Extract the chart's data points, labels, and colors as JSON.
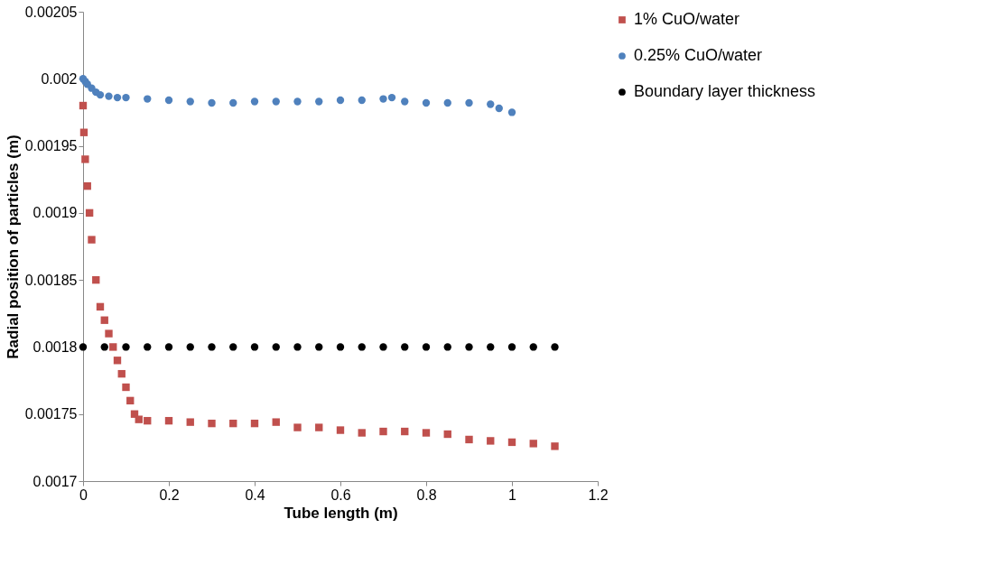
{
  "chart_data": {
    "type": "scatter",
    "xlabel": "Tube length (m)",
    "ylabel": "Radial position of particles (m)",
    "xlim": [
      0,
      1.2
    ],
    "xticks": [
      0,
      0.2,
      0.4,
      0.6,
      0.8,
      1,
      1.2
    ],
    "ylim": [
      0.0017,
      0.00205
    ],
    "yticks": [
      0.0017,
      0.00175,
      0.0018,
      0.00185,
      0.0019,
      0.00195,
      0.002,
      0.00205
    ],
    "grid": false,
    "legend": "right",
    "series": [
      {
        "name": "1% CuO/water",
        "color": "#c0504d",
        "marker": "square",
        "x": [
          0,
          0.002,
          0.005,
          0.01,
          0.015,
          0.02,
          0.03,
          0.04,
          0.05,
          0.06,
          0.07,
          0.08,
          0.09,
          0.1,
          0.11,
          0.12,
          0.13,
          0.15,
          0.2,
          0.25,
          0.3,
          0.35,
          0.4,
          0.45,
          0.5,
          0.55,
          0.6,
          0.65,
          0.7,
          0.75,
          0.8,
          0.85,
          0.9,
          0.95,
          1.0,
          1.05,
          1.1
        ],
        "values": [
          0.00198,
          0.00196,
          0.00194,
          0.00192,
          0.0019,
          0.00188,
          0.00185,
          0.00183,
          0.00182,
          0.00181,
          0.0018,
          0.00179,
          0.00178,
          0.00177,
          0.00176,
          0.00175,
          0.001746,
          0.001745,
          0.001745,
          0.001744,
          0.001743,
          0.001743,
          0.001743,
          0.001744,
          0.00174,
          0.00174,
          0.001738,
          0.001736,
          0.001737,
          0.001737,
          0.001736,
          0.001735,
          0.001731,
          0.00173,
          0.001729,
          0.001728,
          0.001726
        ]
      },
      {
        "name": "0.25% CuO/water",
        "color": "#4f81bd",
        "marker": "circle",
        "x": [
          0,
          0.005,
          0.01,
          0.02,
          0.03,
          0.04,
          0.06,
          0.08,
          0.1,
          0.15,
          0.2,
          0.25,
          0.3,
          0.35,
          0.4,
          0.45,
          0.5,
          0.55,
          0.6,
          0.65,
          0.7,
          0.72,
          0.75,
          0.8,
          0.85,
          0.9,
          0.95,
          0.97,
          1.0
        ],
        "values": [
          0.002,
          0.001998,
          0.001996,
          0.001993,
          0.00199,
          0.001988,
          0.001987,
          0.001986,
          0.001986,
          0.001985,
          0.001984,
          0.001983,
          0.001982,
          0.001982,
          0.001983,
          0.001983,
          0.001983,
          0.001983,
          0.001984,
          0.001984,
          0.001985,
          0.001986,
          0.001983,
          0.001982,
          0.001982,
          0.001982,
          0.001981,
          0.001978,
          0.001975
        ]
      },
      {
        "name": "Boundary layer thickness",
        "color": "#000000",
        "marker": "circle",
        "x": [
          0,
          0.05,
          0.1,
          0.15,
          0.2,
          0.25,
          0.3,
          0.35,
          0.4,
          0.45,
          0.5,
          0.55,
          0.6,
          0.65,
          0.7,
          0.75,
          0.8,
          0.85,
          0.9,
          0.95,
          1.0,
          1.05,
          1.1
        ],
        "values": [
          0.0018,
          0.0018,
          0.0018,
          0.0018,
          0.0018,
          0.0018,
          0.0018,
          0.0018,
          0.0018,
          0.0018,
          0.0018,
          0.0018,
          0.0018,
          0.0018,
          0.0018,
          0.0018,
          0.0018,
          0.0018,
          0.0018,
          0.0018,
          0.0018,
          0.0018,
          0.0018
        ]
      }
    ]
  }
}
